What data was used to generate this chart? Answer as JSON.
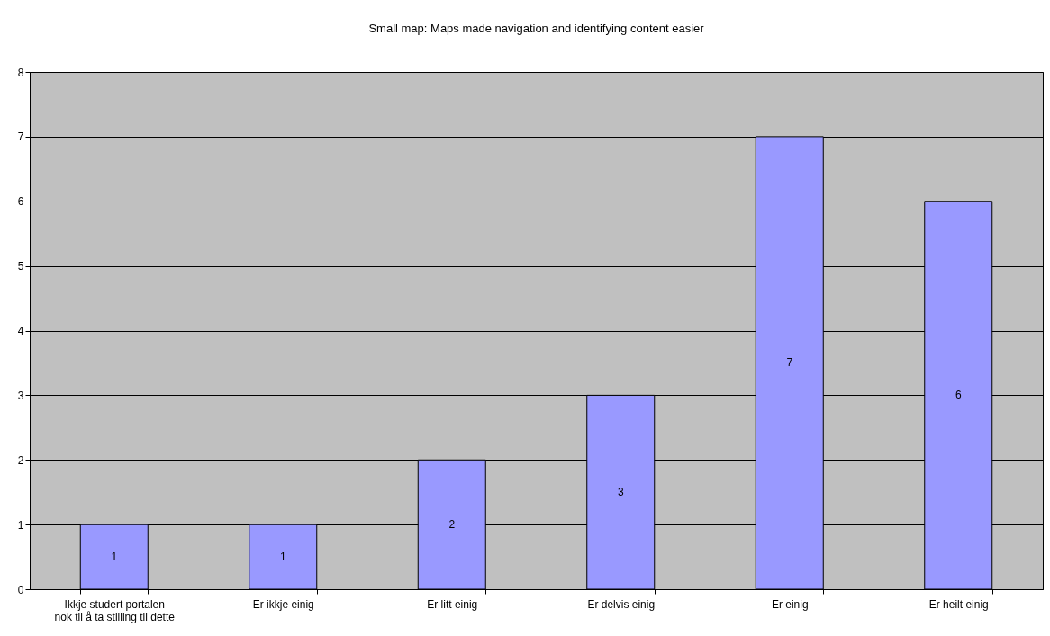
{
  "chart_data": {
    "type": "bar",
    "title": "Small map: Maps made navigation and identifying content easier",
    "categories": [
      "Ikkje studert portalen\nnok til å ta stilling til dette",
      "Er ikkje einig",
      "Er litt einig",
      "Er delvis einig",
      "Er einig",
      "Er heilt einig"
    ],
    "values": [
      1,
      1,
      2,
      3,
      7,
      6
    ],
    "color": "#9999ff",
    "ylim": [
      0,
      8
    ],
    "yticks": [
      0,
      1,
      2,
      3,
      4,
      5,
      6,
      7,
      8
    ],
    "grid": "y",
    "data_labels": true
  }
}
